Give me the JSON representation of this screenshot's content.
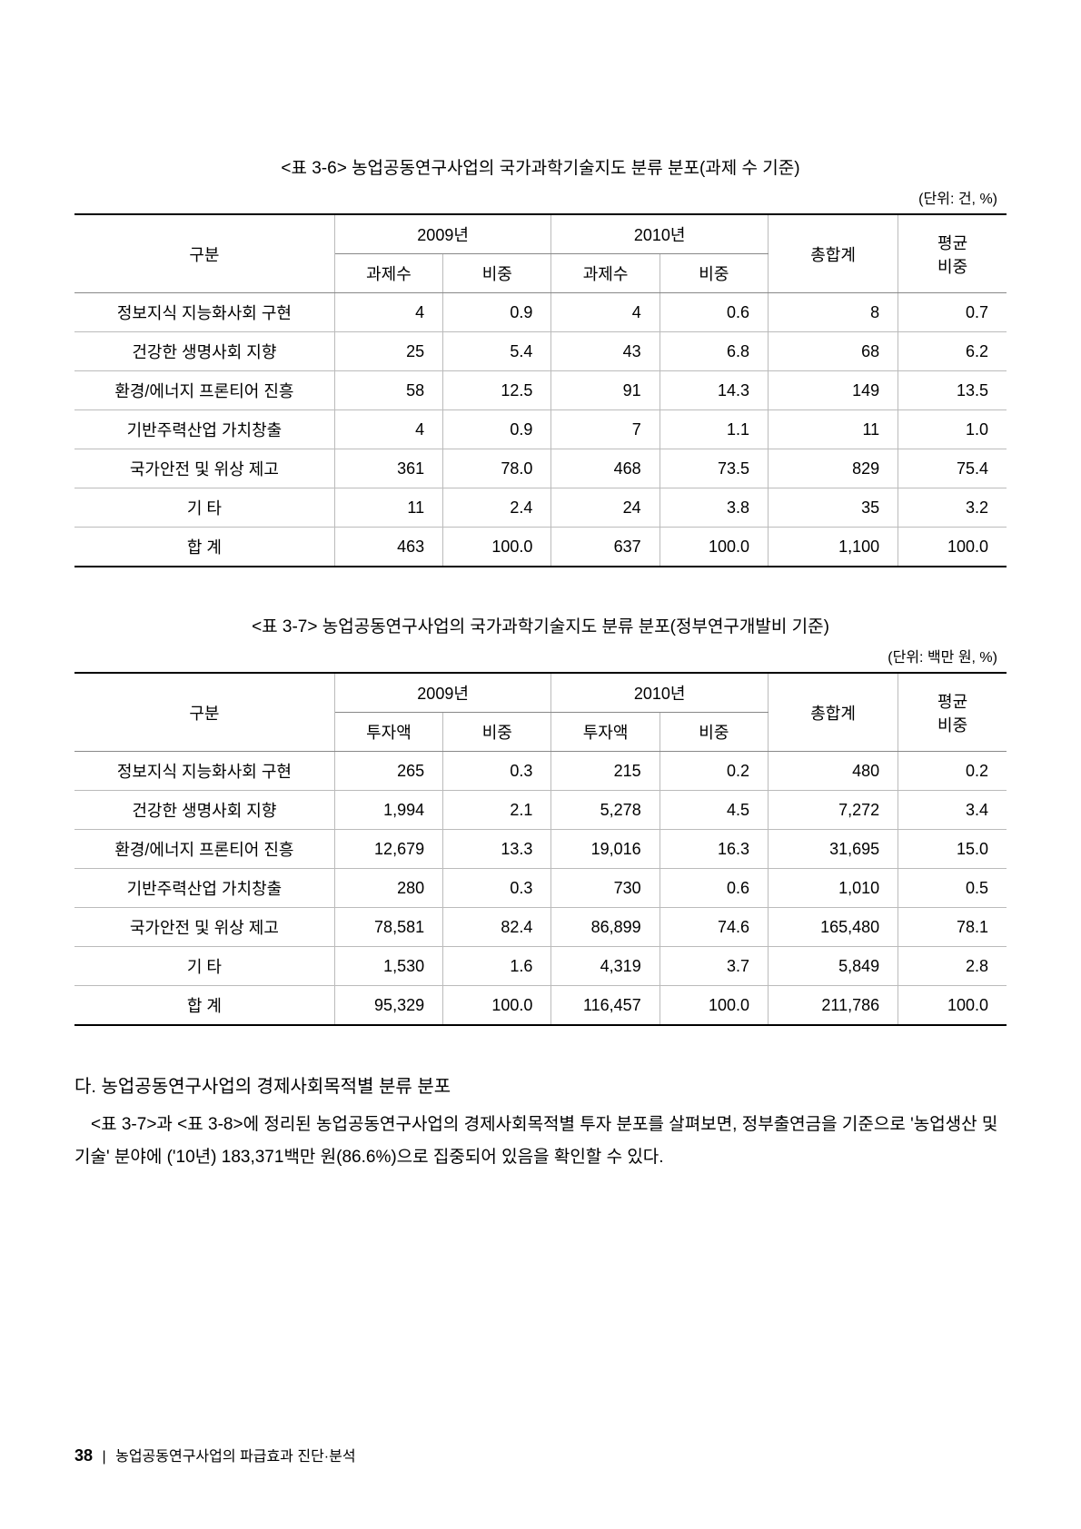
{
  "table1": {
    "caption": "<표 3-6> 농업공동연구사업의 국가과학기술지도 분류 분포(과제 수 기준)",
    "unit": "(단위: 건, %)",
    "header": {
      "category": "구분",
      "year1": "2009년",
      "year2": "2010년",
      "total": "총합계",
      "avgPct": "평균\n비중",
      "count": "과제수",
      "pct": "비중"
    },
    "rows": [
      {
        "label": "정보지식 지능화사회 구현",
        "c1": "4",
        "p1": "0.9",
        "c2": "4",
        "p2": "0.6",
        "tot": "8",
        "avg": "0.7"
      },
      {
        "label": "건강한 생명사회 지향",
        "c1": "25",
        "p1": "5.4",
        "c2": "43",
        "p2": "6.8",
        "tot": "68",
        "avg": "6.2"
      },
      {
        "label": "환경/에너지 프론티어 진흥",
        "c1": "58",
        "p1": "12.5",
        "c2": "91",
        "p2": "14.3",
        "tot": "149",
        "avg": "13.5"
      },
      {
        "label": "기반주력산업 가치창출",
        "c1": "4",
        "p1": "0.9",
        "c2": "7",
        "p2": "1.1",
        "tot": "11",
        "avg": "1.0"
      },
      {
        "label": "국가안전 및 위상 제고",
        "c1": "361",
        "p1": "78.0",
        "c2": "468",
        "p2": "73.5",
        "tot": "829",
        "avg": "75.4"
      },
      {
        "label": "기 타",
        "c1": "11",
        "p1": "2.4",
        "c2": "24",
        "p2": "3.8",
        "tot": "35",
        "avg": "3.2"
      },
      {
        "label": "합 계",
        "c1": "463",
        "p1": "100.0",
        "c2": "637",
        "p2": "100.0",
        "tot": "1,100",
        "avg": "100.0"
      }
    ]
  },
  "table2": {
    "caption": "<표 3-7> 농업공동연구사업의 국가과학기술지도 분류 분포(정부연구개발비 기준)",
    "unit": "(단위: 백만 원, %)",
    "header": {
      "category": "구분",
      "year1": "2009년",
      "year2": "2010년",
      "total": "총합계",
      "avgPct": "평균\n비중",
      "amount": "투자액",
      "pct": "비중"
    },
    "rows": [
      {
        "label": "정보지식 지능화사회 구현",
        "c1": "265",
        "p1": "0.3",
        "c2": "215",
        "p2": "0.2",
        "tot": "480",
        "avg": "0.2"
      },
      {
        "label": "건강한 생명사회 지향",
        "c1": "1,994",
        "p1": "2.1",
        "c2": "5,278",
        "p2": "4.5",
        "tot": "7,272",
        "avg": "3.4"
      },
      {
        "label": "환경/에너지 프론티어 진흥",
        "c1": "12,679",
        "p1": "13.3",
        "c2": "19,016",
        "p2": "16.3",
        "tot": "31,695",
        "avg": "15.0"
      },
      {
        "label": "기반주력산업 가치창출",
        "c1": "280",
        "p1": "0.3",
        "c2": "730",
        "p2": "0.6",
        "tot": "1,010",
        "avg": "0.5"
      },
      {
        "label": "국가안전 및 위상 제고",
        "c1": "78,581",
        "p1": "82.4",
        "c2": "86,899",
        "p2": "74.6",
        "tot": "165,480",
        "avg": "78.1"
      },
      {
        "label": "기 타",
        "c1": "1,530",
        "p1": "1.6",
        "c2": "4,319",
        "p2": "3.7",
        "tot": "5,849",
        "avg": "2.8"
      },
      {
        "label": "합 계",
        "c1": "95,329",
        "p1": "100.0",
        "c2": "116,457",
        "p2": "100.0",
        "tot": "211,786",
        "avg": "100.0"
      }
    ]
  },
  "section": {
    "heading": "다. 농업공동연구사업의 경제사회목적별 분류 분포",
    "body": "<표 3-7>과 <표 3-8>에 정리된 농업공동연구사업의 경제사회목적별 투자 분포를 살펴보면, 정부출연금을 기준으로 '농업생산 및 기술' 분야에 ('10년) 183,371백만 원(86.6%)으로 집중되어 있음을 확인할 수 있다."
  },
  "footer": {
    "pageNum": "38",
    "separator": "|",
    "title": "농업공동연구사업의 파급효과 진단·분석"
  }
}
